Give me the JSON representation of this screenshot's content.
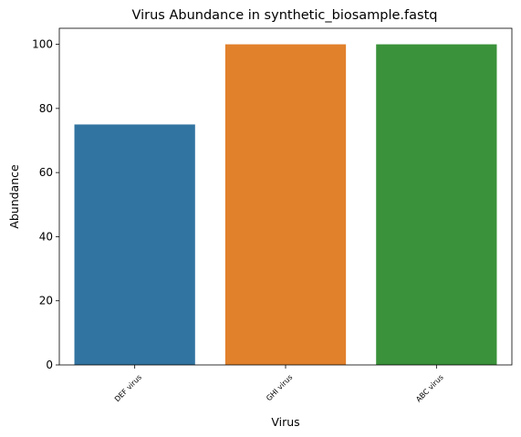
{
  "chart_data": {
    "type": "bar",
    "title": "Virus Abundance in synthetic_biosample.fastq",
    "xlabel": "Virus",
    "ylabel": "Abundance",
    "categories": [
      "DEF virus",
      "GHI virus",
      "ABC virus"
    ],
    "values": [
      75,
      100,
      100
    ],
    "colors": [
      "#3274a1",
      "#e1812c",
      "#3a923a"
    ],
    "ylim": [
      0,
      105
    ],
    "yticks": [
      0,
      20,
      40,
      60,
      80,
      100
    ],
    "grid": false,
    "legend": "none"
  }
}
